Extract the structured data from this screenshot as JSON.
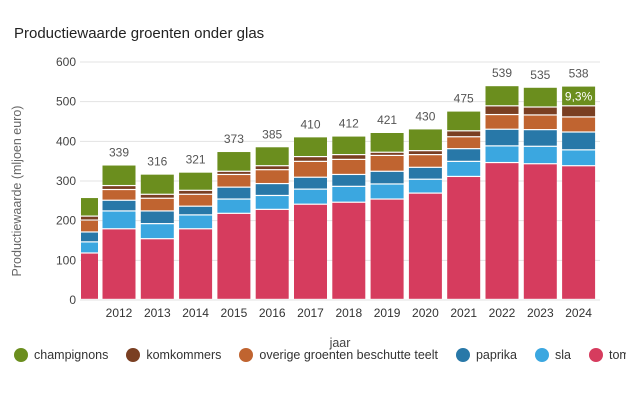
{
  "chart_data": {
    "type": "bar",
    "stacked": true,
    "title": "Productiewaarde groenten onder glas",
    "xlabel": "jaar",
    "ylabel": "Productiewaarde (mljoen euro)",
    "ylim": [
      0,
      600
    ],
    "yticks": [
      "0",
      "100",
      "200",
      "300",
      "400",
      "500",
      "600"
    ],
    "grid": true,
    "legend_position": "bottom",
    "categories": [
      "",
      "2012",
      "2013",
      "2014",
      "2015",
      "2016",
      "2017",
      "2018",
      "2019",
      "2020",
      "2021",
      "2022",
      "2023",
      "2024"
    ],
    "totals": [
      "",
      "339",
      "316",
      "321",
      "373",
      "385",
      "410",
      "412",
      "421",
      "430",
      "475",
      "539",
      "535",
      "538"
    ],
    "annotation": {
      "category_index": 13,
      "text": "9,3%"
    },
    "series": [
      {
        "name": "tomaten",
        "color": "#d63c5e",
        "values": [
          117,
          178,
          153,
          178,
          217,
          227,
          240,
          245,
          253,
          268,
          310,
          345,
          342,
          337
        ]
      },
      {
        "name": "sla",
        "color": "#3ba7e0",
        "values": [
          28,
          45,
          38,
          35,
          36,
          35,
          38,
          40,
          38,
          35,
          38,
          42,
          44,
          40
        ]
      },
      {
        "name": "paprika",
        "color": "#2878a8",
        "values": [
          25,
          27,
          32,
          22,
          30,
          30,
          30,
          30,
          32,
          30,
          32,
          42,
          42,
          45
        ]
      },
      {
        "name": "overige groenten beschutte teelt",
        "color": "#c06430",
        "values": [
          30,
          27,
          32,
          30,
          32,
          35,
          40,
          38,
          40,
          32,
          30,
          37,
          37,
          38
        ]
      },
      {
        "name": "komkommers",
        "color": "#7a3f22",
        "values": [
          10,
          10,
          10,
          10,
          8,
          10,
          12,
          12,
          8,
          10,
          15,
          22,
          20,
          28
        ]
      },
      {
        "name": "champignons",
        "color": "#6b8e1e",
        "values": [
          47,
          52,
          51,
          46,
          50,
          48,
          50,
          47,
          50,
          55,
          50,
          51,
          50,
          50
        ]
      }
    ]
  }
}
